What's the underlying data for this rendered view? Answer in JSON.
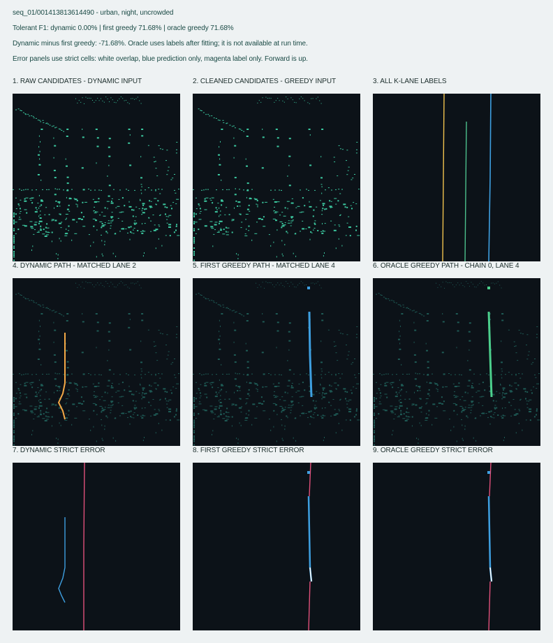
{
  "header": {
    "sequence": "seq_01/001413813614490 - urban, night, uncrowded",
    "f1_line": "Tolerant F1: dynamic 0.00% | first greedy 71.68% | oracle greedy 71.68%",
    "delta_line": "Dynamic minus first greedy: -71.68%. Oracle uses labels after fitting; it is not available at run time.",
    "legend_line": "Error panels use strict cells: white overlap, blue prediction only, magenta label only. Forward is up."
  },
  "panels": [
    {
      "title": "1. RAW CANDIDATES - DYNAMIC INPUT"
    },
    {
      "title": "2. CLEANED CANDIDATES - GREEDY INPUT"
    },
    {
      "title": "3. ALL K-LANE LABELS"
    },
    {
      "title": "4. DYNAMIC PATH - MATCHED LANE 2"
    },
    {
      "title": "5. FIRST GREEDY PATH - MATCHED LANE 4"
    },
    {
      "title": "6. ORACLE GREEDY PATH - CHAIN 0, LANE 4"
    },
    {
      "title": "7. DYNAMIC STRICT ERROR"
    },
    {
      "title": "8. FIRST GREEDY STRICT ERROR"
    },
    {
      "title": "9. ORACLE GREEDY STRICT ERROR"
    }
  ],
  "colors": {
    "background": "#0c1218",
    "candidate": "#3cc9a0",
    "candidate_dim": "#1e5a55",
    "lane_yellow": "#f0c24e",
    "lane_green": "#4cc08c",
    "lane_blue": "#3e9fe0",
    "dynamic_path": "#f3a846",
    "greedy_path": "#3e9fe0",
    "oracle_path": "#4ccf8c",
    "error_overlap": "#ffffff",
    "error_prediction": "#3e9fe0",
    "error_label": "#e0507a"
  }
}
